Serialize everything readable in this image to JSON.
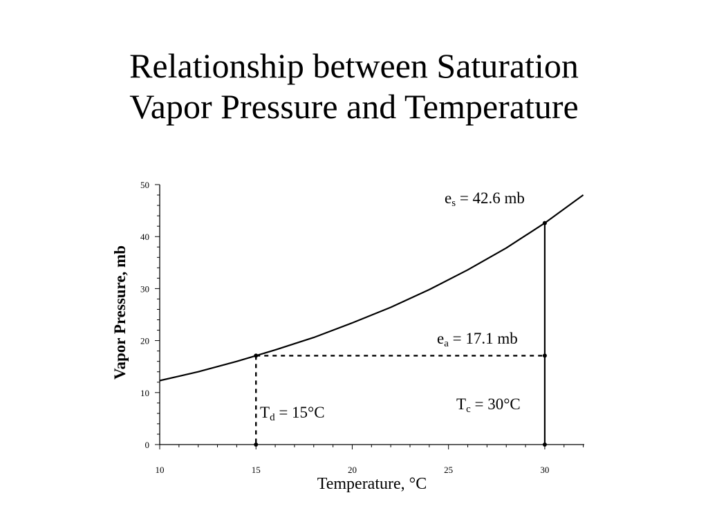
{
  "slide": {
    "title_line1": "Relationship between Saturation",
    "title_line2": "Vapor Pressure and Temperature"
  },
  "chart_data": {
    "type": "line",
    "title": "",
    "xlabel": "Temperature, °C",
    "ylabel": "Vapor Pressure, mb",
    "xlim": [
      10,
      32
    ],
    "ylim": [
      0,
      50
    ],
    "x_ticks": [
      10,
      15,
      20,
      25,
      30
    ],
    "y_ticks": [
      0,
      10,
      20,
      30,
      40,
      50
    ],
    "grid": false,
    "series": [
      {
        "x": [
          10,
          12,
          14,
          15,
          16,
          18,
          20,
          22,
          24,
          26,
          28,
          30,
          32
        ],
        "y": [
          12.3,
          14.0,
          16.0,
          17.1,
          18.2,
          20.6,
          23.4,
          26.4,
          29.8,
          33.6,
          37.8,
          42.6,
          48.0
        ],
        "color": "#000000"
      }
    ],
    "annotations": {
      "es": {
        "prefix": "e",
        "sub": "s",
        "suffix": " = 42.6 mb",
        "x": 30,
        "y": 42.6
      },
      "ea": {
        "prefix": "e",
        "sub": "a",
        "suffix": " = 17.1 mb",
        "x": 30,
        "y": 17.1
      },
      "td": {
        "prefix": "T",
        "sub": "d",
        "suffix": " = 15°C",
        "x": 15
      },
      "tc": {
        "prefix": "T",
        "sub": "c",
        "suffix": " = 30°C",
        "x": 30
      }
    }
  }
}
